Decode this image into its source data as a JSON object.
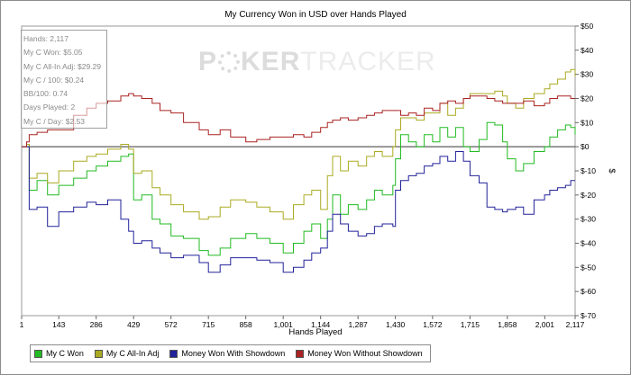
{
  "chart_data": {
    "type": "line",
    "title": "My Currency Won in USD over Hands Played",
    "xlabel": "Hands Played",
    "ylabel": "$",
    "xlim": [
      1,
      2117
    ],
    "ylim": [
      -70,
      50
    ],
    "x_ticks": [
      1,
      143,
      286,
      429,
      572,
      715,
      858,
      1001,
      1144,
      1287,
      1430,
      1572,
      1715,
      1858,
      2001,
      2117
    ],
    "x_tick_labels": [
      "1",
      "143",
      "286",
      "429",
      "572",
      "715",
      "858",
      "1,001",
      "1,144",
      "1,287",
      "1,430",
      "1,572",
      "1,715",
      "1,858",
      "2,001",
      "2,117"
    ],
    "y_ticks": [
      50,
      40,
      30,
      20,
      10,
      0,
      -10,
      -20,
      -30,
      -40,
      -50,
      -60,
      -70
    ],
    "y_tick_labels": [
      "$50",
      "$40",
      "$30",
      "$20",
      "$10",
      "$0",
      "$-10",
      "$-20",
      "$-30",
      "$-40",
      "$-50",
      "$-60",
      "$-70"
    ],
    "series": [
      {
        "name": "My C Won",
        "color": "#22bb22",
        "points": [
          [
            1,
            0
          ],
          [
            20,
            1
          ],
          [
            30,
            -18
          ],
          [
            60,
            -14
          ],
          [
            100,
            -20
          ],
          [
            143,
            -16
          ],
          [
            200,
            -13
          ],
          [
            250,
            -10
          ],
          [
            286,
            -8
          ],
          [
            330,
            -6
          ],
          [
            380,
            -4
          ],
          [
            410,
            -3
          ],
          [
            429,
            -22
          ],
          [
            460,
            -20
          ],
          [
            500,
            -30
          ],
          [
            530,
            -32
          ],
          [
            572,
            -37
          ],
          [
            620,
            -38
          ],
          [
            680,
            -43
          ],
          [
            715,
            -45
          ],
          [
            760,
            -42
          ],
          [
            800,
            -38
          ],
          [
            858,
            -36
          ],
          [
            900,
            -38
          ],
          [
            950,
            -40
          ],
          [
            1001,
            -44
          ],
          [
            1040,
            -40
          ],
          [
            1080,
            -35
          ],
          [
            1110,
            -32
          ],
          [
            1144,
            -38
          ],
          [
            1170,
            -30
          ],
          [
            1190,
            -20
          ],
          [
            1220,
            -28
          ],
          [
            1250,
            -24
          ],
          [
            1287,
            -26
          ],
          [
            1320,
            -22
          ],
          [
            1350,
            -18
          ],
          [
            1380,
            -20
          ],
          [
            1420,
            -16
          ],
          [
            1430,
            -5
          ],
          [
            1450,
            5
          ],
          [
            1480,
            2
          ],
          [
            1510,
            0
          ],
          [
            1540,
            5
          ],
          [
            1572,
            2
          ],
          [
            1600,
            8
          ],
          [
            1630,
            4
          ],
          [
            1660,
            8
          ],
          [
            1690,
            0
          ],
          [
            1715,
            -2
          ],
          [
            1750,
            3
          ],
          [
            1780,
            10
          ],
          [
            1810,
            9
          ],
          [
            1840,
            2
          ],
          [
            1858,
            -5
          ],
          [
            1890,
            -10
          ],
          [
            1920,
            -7
          ],
          [
            1960,
            -2
          ],
          [
            2000,
            0
          ],
          [
            2020,
            4
          ],
          [
            2050,
            7
          ],
          [
            2080,
            9
          ],
          [
            2100,
            8
          ],
          [
            2117,
            5
          ]
        ]
      },
      {
        "name": "My C All-In Adj",
        "color": "#aaaa22",
        "points": [
          [
            1,
            0
          ],
          [
            20,
            1
          ],
          [
            30,
            -13
          ],
          [
            60,
            -11
          ],
          [
            100,
            -15
          ],
          [
            143,
            -10
          ],
          [
            200,
            -6
          ],
          [
            250,
            -4
          ],
          [
            286,
            -3
          ],
          [
            330,
            -1
          ],
          [
            380,
            1
          ],
          [
            410,
            -1
          ],
          [
            429,
            -11
          ],
          [
            460,
            -10
          ],
          [
            500,
            -17
          ],
          [
            530,
            -20
          ],
          [
            572,
            -24
          ],
          [
            620,
            -27
          ],
          [
            680,
            -30
          ],
          [
            715,
            -29
          ],
          [
            760,
            -25
          ],
          [
            800,
            -22
          ],
          [
            858,
            -23
          ],
          [
            900,
            -25
          ],
          [
            950,
            -27
          ],
          [
            1001,
            -30
          ],
          [
            1040,
            -24
          ],
          [
            1080,
            -20
          ],
          [
            1110,
            -18
          ],
          [
            1144,
            -26
          ],
          [
            1170,
            -12
          ],
          [
            1190,
            -4
          ],
          [
            1220,
            -10
          ],
          [
            1250,
            -6
          ],
          [
            1287,
            -8
          ],
          [
            1320,
            -4
          ],
          [
            1350,
            -2
          ],
          [
            1380,
            -4
          ],
          [
            1420,
            0
          ],
          [
            1430,
            7
          ],
          [
            1450,
            12
          ],
          [
            1480,
            12
          ],
          [
            1510,
            11
          ],
          [
            1540,
            14
          ],
          [
            1572,
            14
          ],
          [
            1600,
            18
          ],
          [
            1630,
            13
          ],
          [
            1660,
            16
          ],
          [
            1690,
            20
          ],
          [
            1715,
            22
          ],
          [
            1750,
            22
          ],
          [
            1780,
            22
          ],
          [
            1810,
            23
          ],
          [
            1840,
            21
          ],
          [
            1858,
            18
          ],
          [
            1890,
            16
          ],
          [
            1920,
            20
          ],
          [
            1960,
            22
          ],
          [
            2000,
            24
          ],
          [
            2020,
            26
          ],
          [
            2050,
            28
          ],
          [
            2080,
            31
          ],
          [
            2100,
            32
          ],
          [
            2117,
            29
          ]
        ]
      },
      {
        "name": "Money Won With Showdown",
        "color": "#22229a",
        "points": [
          [
            1,
            0
          ],
          [
            20,
            0
          ],
          [
            30,
            -26
          ],
          [
            60,
            -25
          ],
          [
            100,
            -33
          ],
          [
            143,
            -27
          ],
          [
            200,
            -25
          ],
          [
            250,
            -23
          ],
          [
            286,
            -24
          ],
          [
            330,
            -22
          ],
          [
            380,
            -30
          ],
          [
            410,
            -35
          ],
          [
            429,
            -40
          ],
          [
            460,
            -39
          ],
          [
            500,
            -42
          ],
          [
            530,
            -44
          ],
          [
            572,
            -46
          ],
          [
            620,
            -45
          ],
          [
            680,
            -48
          ],
          [
            715,
            -52
          ],
          [
            760,
            -49
          ],
          [
            800,
            -46
          ],
          [
            858,
            -46
          ],
          [
            900,
            -47
          ],
          [
            950,
            -48
          ],
          [
            1001,
            -52
          ],
          [
            1040,
            -50
          ],
          [
            1080,
            -47
          ],
          [
            1110,
            -44
          ],
          [
            1144,
            -42
          ],
          [
            1170,
            -35
          ],
          [
            1190,
            -28
          ],
          [
            1220,
            -32
          ],
          [
            1250,
            -35
          ],
          [
            1287,
            -37
          ],
          [
            1320,
            -36
          ],
          [
            1350,
            -33
          ],
          [
            1380,
            -32
          ],
          [
            1420,
            -33
          ],
          [
            1430,
            -18
          ],
          [
            1450,
            -14
          ],
          [
            1480,
            -12
          ],
          [
            1510,
            -11
          ],
          [
            1540,
            -8
          ],
          [
            1572,
            -7
          ],
          [
            1600,
            -4
          ],
          [
            1630,
            -6
          ],
          [
            1660,
            -2
          ],
          [
            1690,
            -6
          ],
          [
            1715,
            -12
          ],
          [
            1750,
            -15
          ],
          [
            1780,
            -25
          ],
          [
            1810,
            -26
          ],
          [
            1840,
            -27
          ],
          [
            1858,
            -26
          ],
          [
            1890,
            -25
          ],
          [
            1920,
            -28
          ],
          [
            1960,
            -22
          ],
          [
            2000,
            -20
          ],
          [
            2020,
            -18
          ],
          [
            2050,
            -17
          ],
          [
            2080,
            -16
          ],
          [
            2100,
            -14
          ],
          [
            2117,
            -14
          ]
        ]
      },
      {
        "name": "Money Won Without Showdown",
        "color": "#aa2222",
        "points": [
          [
            1,
            0
          ],
          [
            20,
            2
          ],
          [
            30,
            5
          ],
          [
            60,
            6
          ],
          [
            100,
            7
          ],
          [
            143,
            7
          ],
          [
            200,
            13
          ],
          [
            250,
            16
          ],
          [
            286,
            18
          ],
          [
            330,
            19
          ],
          [
            380,
            21
          ],
          [
            410,
            22
          ],
          [
            429,
            21
          ],
          [
            460,
            20
          ],
          [
            500,
            18
          ],
          [
            530,
            15
          ],
          [
            572,
            14
          ],
          [
            620,
            10
          ],
          [
            680,
            7
          ],
          [
            715,
            5
          ],
          [
            760,
            7
          ],
          [
            800,
            4
          ],
          [
            858,
            2
          ],
          [
            900,
            3
          ],
          [
            950,
            4
          ],
          [
            1001,
            4
          ],
          [
            1040,
            5
          ],
          [
            1080,
            4
          ],
          [
            1110,
            6
          ],
          [
            1144,
            8
          ],
          [
            1170,
            10
          ],
          [
            1190,
            11
          ],
          [
            1220,
            12
          ],
          [
            1250,
            11
          ],
          [
            1287,
            12
          ],
          [
            1320,
            13
          ],
          [
            1350,
            14
          ],
          [
            1380,
            15
          ],
          [
            1420,
            15
          ],
          [
            1430,
            15
          ],
          [
            1450,
            13
          ],
          [
            1480,
            14
          ],
          [
            1510,
            13
          ],
          [
            1540,
            16
          ],
          [
            1572,
            15
          ],
          [
            1600,
            18
          ],
          [
            1630,
            19
          ],
          [
            1660,
            18
          ],
          [
            1690,
            20
          ],
          [
            1715,
            21
          ],
          [
            1750,
            21
          ],
          [
            1780,
            20
          ],
          [
            1810,
            19
          ],
          [
            1840,
            18
          ],
          [
            1858,
            18
          ],
          [
            1890,
            18
          ],
          [
            1920,
            19
          ],
          [
            1960,
            17
          ],
          [
            2000,
            18
          ],
          [
            2020,
            20
          ],
          [
            2050,
            21
          ],
          [
            2080,
            21
          ],
          [
            2100,
            20
          ],
          [
            2117,
            20
          ]
        ]
      }
    ]
  },
  "stats": {
    "hands": "Hands: 2,117",
    "won": "My C Won: $5.05",
    "allin_adj": "My C All-In Adj: $29.29",
    "per_100": "My C / 100: $0.24",
    "bb_100": "BB/100: 0.74",
    "days": "Days Played: 2",
    "per_day": "My C / Day: $2.53"
  },
  "watermark": {
    "part1": "P",
    "part2": "KER",
    "part3": "TRACKER"
  }
}
